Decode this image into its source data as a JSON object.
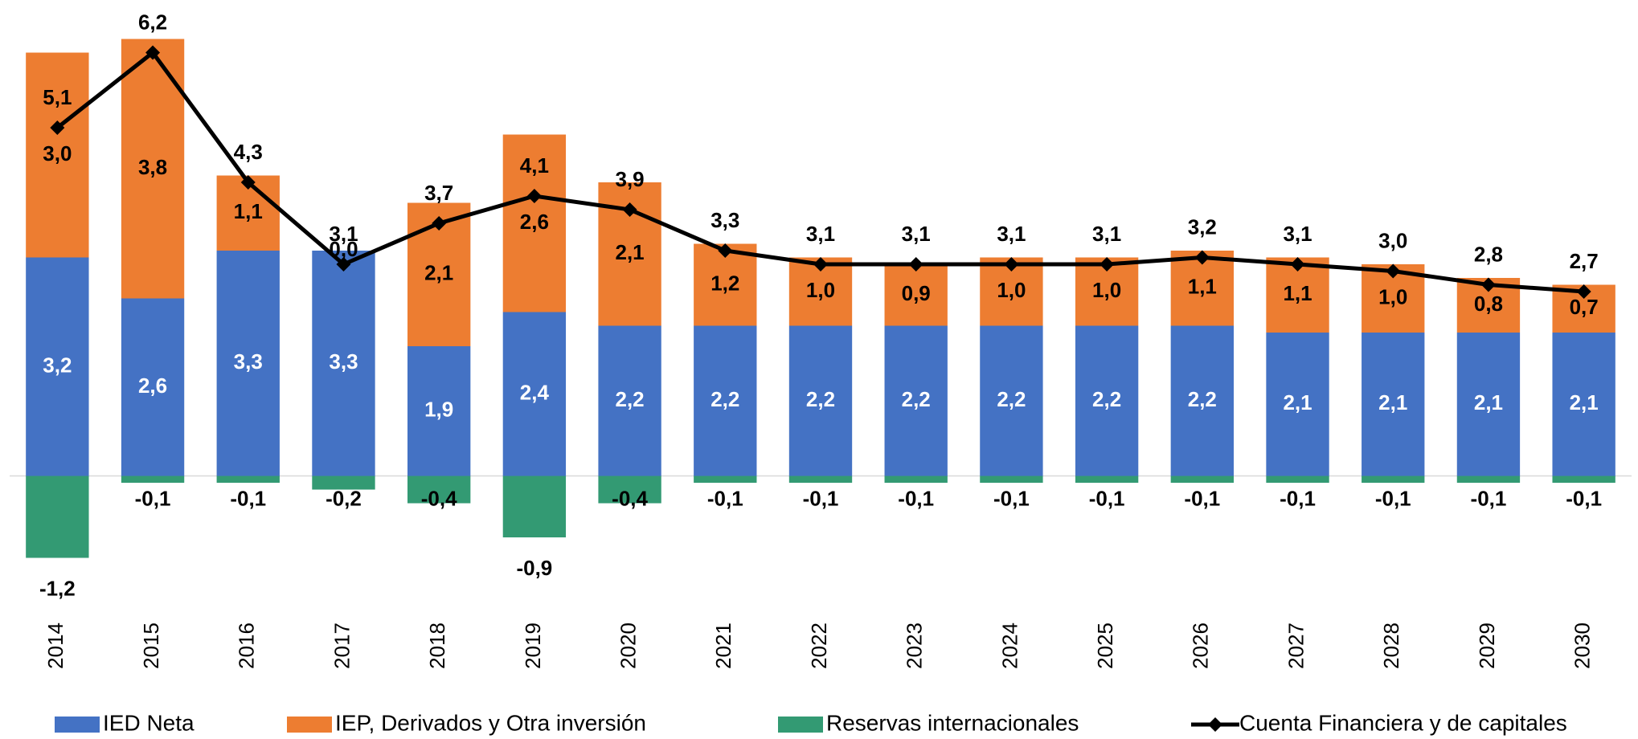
{
  "chart_data": {
    "type": "bar",
    "categories": [
      "2014",
      "2015",
      "2016",
      "2017",
      "2018",
      "2019",
      "2020",
      "2021",
      "2022",
      "2023",
      "2024",
      "2025",
      "2026",
      "2027",
      "2028",
      "2029",
      "2030"
    ],
    "stacked": true,
    "ylim": [
      -1.5,
      6.5
    ],
    "legend": "bottom",
    "series": [
      {
        "name": "IED Neta",
        "color": "#4472c4",
        "values": [
          3.2,
          2.6,
          3.3,
          3.3,
          1.9,
          2.4,
          2.2,
          2.2,
          2.2,
          2.2,
          2.2,
          2.2,
          2.2,
          2.1,
          2.1,
          2.1,
          2.1
        ],
        "value_labels": [
          "3,2",
          "2,6",
          "3,3",
          "3,3",
          "1,9",
          "2,4",
          "2,2",
          "2,2",
          "2,2",
          "2,2",
          "2,2",
          "2,2",
          "2,2",
          "2,1",
          "2,1",
          "2,1",
          "2,1"
        ]
      },
      {
        "name": "IEP, Derivados y Otra inversión",
        "color": "#ed7d31",
        "values": [
          3.0,
          3.8,
          1.1,
          0.0,
          2.1,
          2.6,
          2.1,
          1.2,
          1.0,
          0.9,
          1.0,
          1.0,
          1.1,
          1.1,
          1.0,
          0.8,
          0.7
        ],
        "value_labels": [
          "3,0",
          "3,8",
          "1,1",
          "0,0",
          "2,1",
          "2,6",
          "2,1",
          "1,2",
          "1,0",
          "0,9",
          "1,0",
          "1,0",
          "1,1",
          "1,1",
          "1,0",
          "0,8",
          "0,7"
        ]
      },
      {
        "name": "Reservas internacionales",
        "color": "#339a73",
        "values": [
          -1.2,
          -0.1,
          -0.1,
          -0.2,
          -0.4,
          -0.9,
          -0.4,
          -0.1,
          -0.1,
          -0.1,
          -0.1,
          -0.1,
          -0.1,
          -0.1,
          -0.1,
          -0.1,
          -0.1
        ],
        "value_labels": [
          "-1,2",
          "-0,1",
          "-0,1",
          "-0,2",
          "-0,4",
          "-0,9",
          "-0,4",
          "-0,1",
          "-0,1",
          "-0,1",
          "-0,1",
          "-0,1",
          "-0,1",
          "-0,1",
          "-0,1",
          "-0,1",
          "-0,1"
        ]
      },
      {
        "name": "Cuenta Financiera y de capitales",
        "color": "#000000",
        "type": "line",
        "values": [
          5.1,
          6.2,
          4.3,
          3.1,
          3.7,
          4.1,
          3.9,
          3.3,
          3.1,
          3.1,
          3.1,
          3.1,
          3.2,
          3.1,
          3.0,
          2.8,
          2.7
        ],
        "value_labels": [
          "5,1",
          "6,2",
          "4,3",
          "3,1",
          "3,7",
          "4,1",
          "3,9",
          "3,3",
          "3,1",
          "3,1",
          "3,1",
          "3,1",
          "3,2",
          "3,1",
          "3,0",
          "2,8",
          "2,7"
        ]
      }
    ]
  }
}
